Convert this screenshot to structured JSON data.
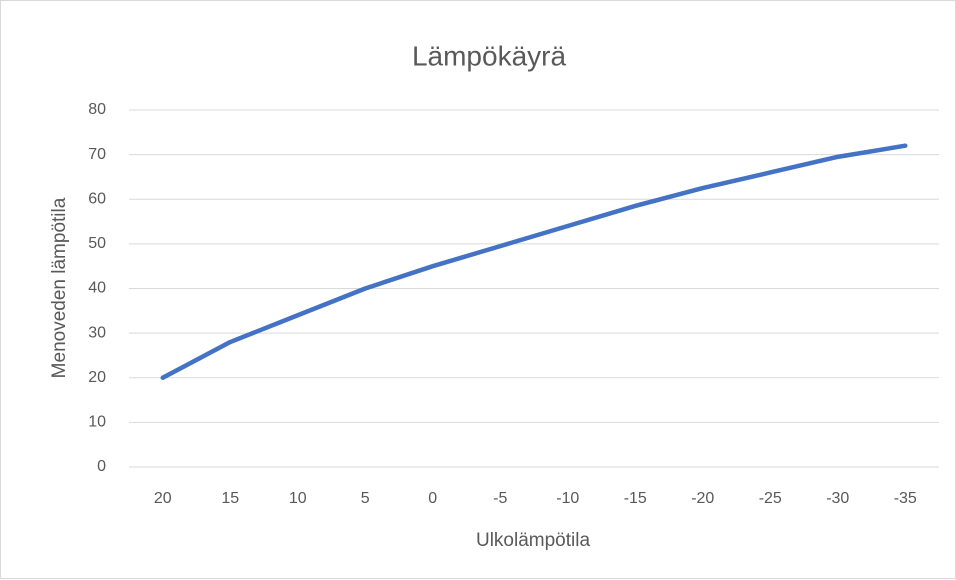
{
  "chart_data": {
    "type": "line",
    "title": "Lämpökäyrä",
    "x_label": "Ulkolämpötila",
    "y_label": "Menoveden lämpötila",
    "categories": [
      "20",
      "15",
      "10",
      "5",
      "0",
      "-5",
      "-10",
      "-15",
      "-20",
      "-25",
      "-30",
      "-35"
    ],
    "series": [
      {
        "name": "Menoveden lämpötila",
        "color": "#4472c4",
        "values": [
          20,
          28,
          34,
          40,
          45,
          49.5,
          54,
          58.5,
          62.5,
          66,
          69.5,
          72
        ]
      }
    ],
    "ylim": [
      0,
      80
    ],
    "yticks": [
      0,
      10,
      20,
      30,
      40,
      50,
      60,
      70,
      80
    ],
    "grid": true,
    "legend": false
  }
}
